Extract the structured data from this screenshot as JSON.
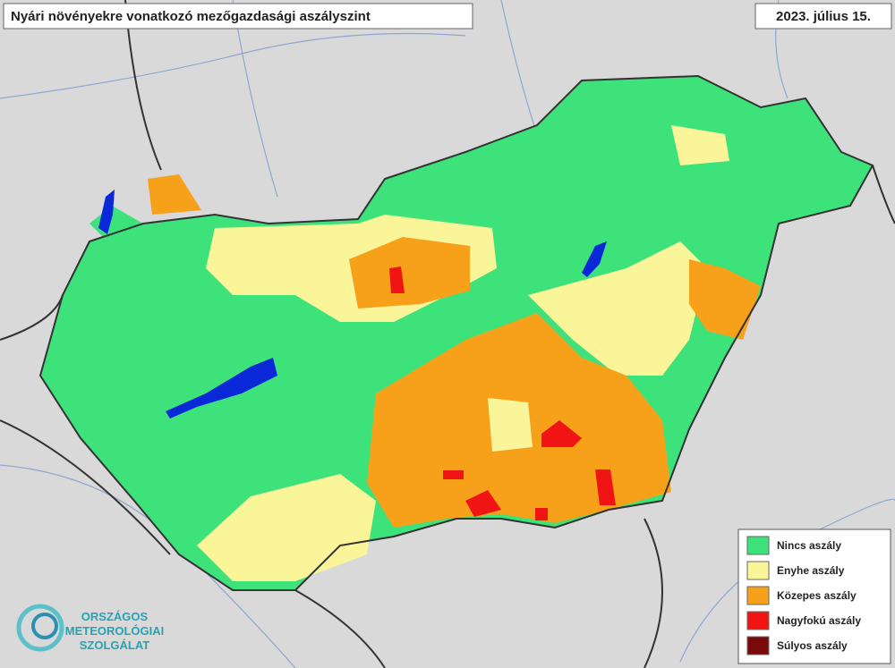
{
  "header": {
    "title": "Nyári növényekre vonatkozó mezőgazdasági aszályszint",
    "date": "2023. július 15."
  },
  "legend": {
    "items": [
      {
        "label": "Nincs aszály",
        "color": "#3ee27a"
      },
      {
        "label": "Enyhe aszály",
        "color": "#fbf59a"
      },
      {
        "label": "Közepes aszály",
        "color": "#f7a11a"
      },
      {
        "label": "Nagyfokú aszály",
        "color": "#f01414"
      },
      {
        "label": "Súlyos aszály",
        "color": "#7a0a0a"
      }
    ]
  },
  "logo": {
    "lines": [
      "ORSZÁGOS",
      "METEOROLÓGIAI",
      "SZOLGÁLAT"
    ]
  }
}
